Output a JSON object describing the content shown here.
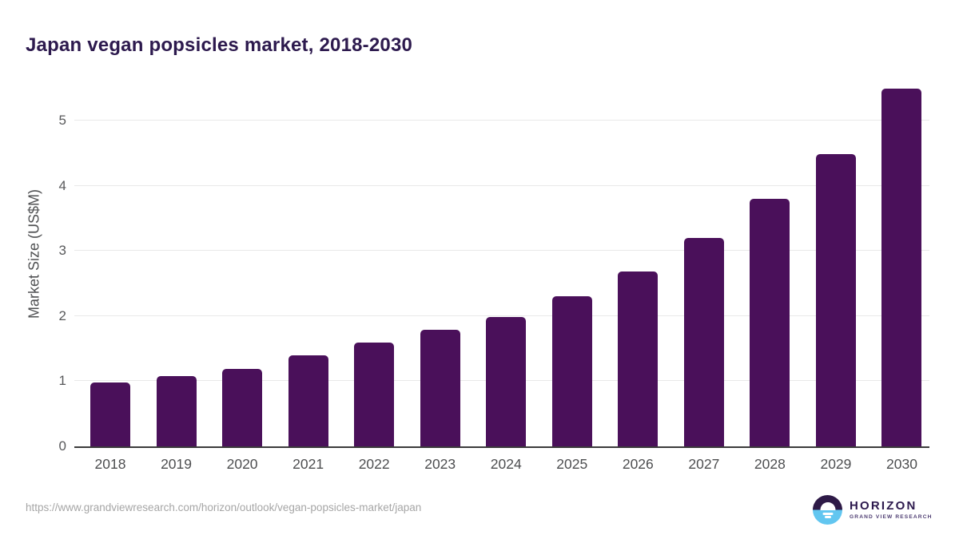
{
  "header": {
    "title": "Japan vegan popsicles market, 2018-2030"
  },
  "chart_data": {
    "type": "bar",
    "title": "Japan vegan popsicles market, 2018-2030",
    "categories": [
      "2018",
      "2019",
      "2020",
      "2021",
      "2022",
      "2023",
      "2024",
      "2025",
      "2026",
      "2027",
      "2028",
      "2029",
      "2030"
    ],
    "values": [
      0.98,
      1.08,
      1.19,
      1.4,
      1.59,
      1.79,
      1.98,
      2.3,
      2.69,
      3.2,
      3.8,
      4.48,
      5.49
    ],
    "xlabel": "",
    "ylabel": "Market Size (US$M)",
    "yticks": [
      0,
      1,
      2,
      3,
      4,
      5
    ],
    "ylim": [
      0,
      5.63
    ],
    "grid": "horizontal",
    "legend": "none",
    "bar_color": "#4a105a"
  },
  "footer": {
    "source_url": "https://www.grandviewresearch.com/horizon/outlook/vegan-popsicles-market/japan",
    "logo": {
      "name": "HORIZON",
      "subtitle": "GRAND VIEW RESEARCH"
    }
  },
  "colors": {
    "title_text": "#2d1a4e",
    "bar_fill": "#4a105a",
    "axis_line": "#3b3b3b",
    "gridline": "#e9e9e9",
    "tick_text": "#58595b",
    "url_text": "#a6a6a6",
    "logo_purple": "#2e1a47",
    "logo_blue": "#62c6f0"
  }
}
